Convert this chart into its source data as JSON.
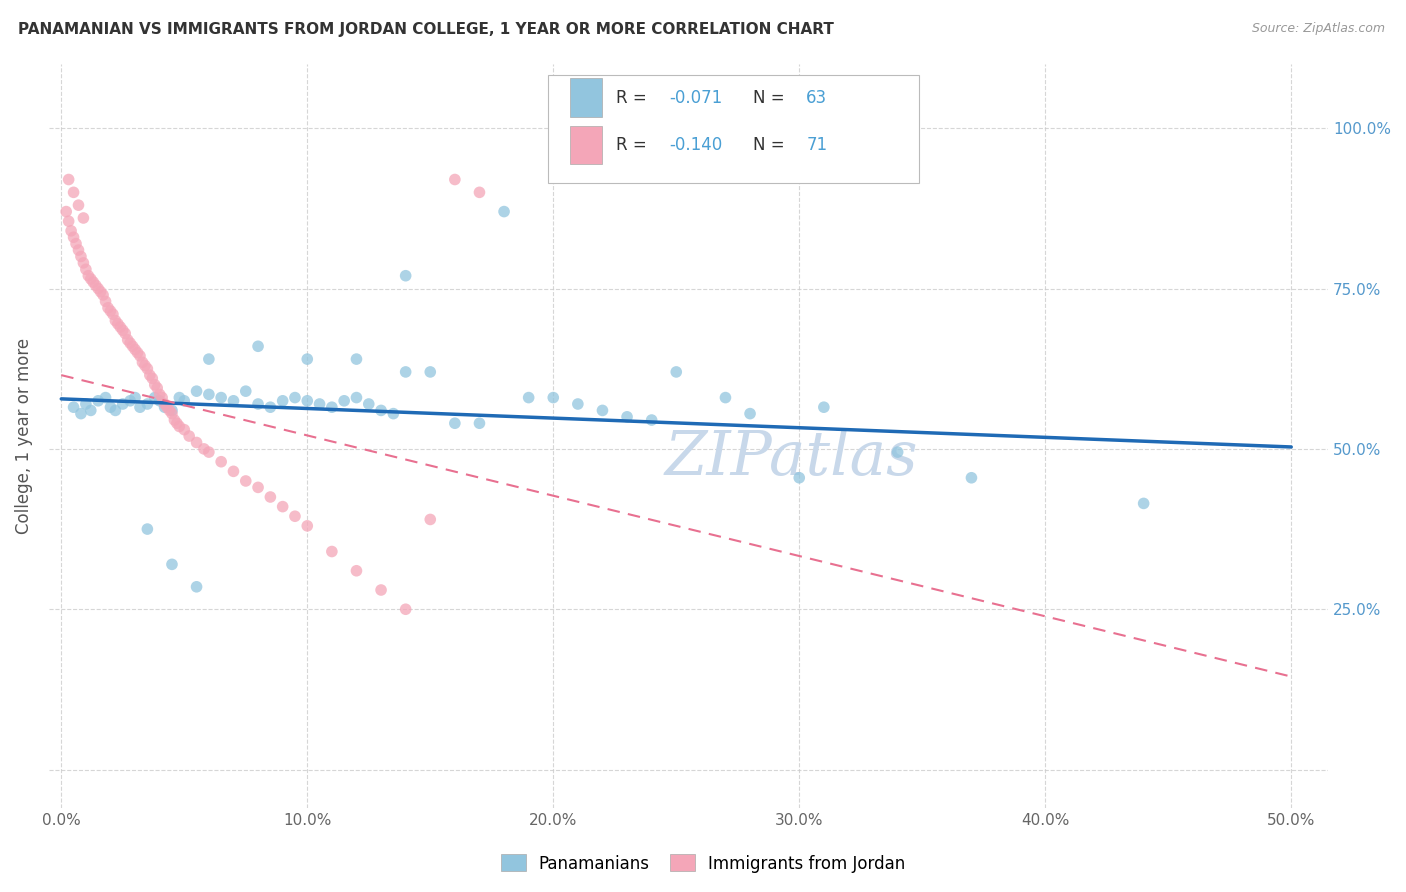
{
  "title": "PANAMANIAN VS IMMIGRANTS FROM JORDAN COLLEGE, 1 YEAR OR MORE CORRELATION CHART",
  "source": "Source: ZipAtlas.com",
  "ylabel": "College, 1 year or more",
  "color_blue": "#92c5de",
  "color_pink": "#f4a6b8",
  "color_line_blue": "#1f6ab5",
  "color_line_pink": "#e87090",
  "watermark": "ZIPatlas",
  "watermark_color": "#c8d8ea",
  "blue_x": [
    0.005,
    0.008,
    0.01,
    0.012,
    0.015,
    0.018,
    0.02,
    0.022,
    0.025,
    0.028,
    0.03,
    0.032,
    0.035,
    0.038,
    0.04,
    0.042,
    0.045,
    0.048,
    0.05,
    0.055,
    0.06,
    0.065,
    0.07,
    0.075,
    0.08,
    0.085,
    0.09,
    0.095,
    0.1,
    0.105,
    0.11,
    0.115,
    0.12,
    0.125,
    0.13,
    0.135,
    0.14,
    0.15,
    0.16,
    0.17,
    0.18,
    0.19,
    0.2,
    0.21,
    0.22,
    0.23,
    0.24,
    0.25,
    0.27,
    0.28,
    0.3,
    0.31,
    0.34,
    0.37,
    0.44,
    0.06,
    0.08,
    0.1,
    0.12,
    0.14,
    0.035,
    0.045,
    0.055
  ],
  "blue_y": [
    0.565,
    0.555,
    0.57,
    0.56,
    0.575,
    0.58,
    0.565,
    0.56,
    0.57,
    0.575,
    0.58,
    0.565,
    0.57,
    0.58,
    0.575,
    0.565,
    0.56,
    0.58,
    0.575,
    0.59,
    0.585,
    0.58,
    0.575,
    0.59,
    0.57,
    0.565,
    0.575,
    0.58,
    0.575,
    0.57,
    0.565,
    0.575,
    0.58,
    0.57,
    0.56,
    0.555,
    0.77,
    0.62,
    0.54,
    0.54,
    0.87,
    0.58,
    0.58,
    0.57,
    0.56,
    0.55,
    0.545,
    0.62,
    0.58,
    0.555,
    0.455,
    0.565,
    0.495,
    0.455,
    0.415,
    0.64,
    0.66,
    0.64,
    0.64,
    0.62,
    0.375,
    0.32,
    0.285
  ],
  "pink_x": [
    0.002,
    0.003,
    0.004,
    0.005,
    0.006,
    0.007,
    0.008,
    0.009,
    0.01,
    0.011,
    0.012,
    0.013,
    0.014,
    0.015,
    0.016,
    0.017,
    0.018,
    0.019,
    0.02,
    0.021,
    0.022,
    0.023,
    0.024,
    0.025,
    0.026,
    0.027,
    0.028,
    0.029,
    0.03,
    0.031,
    0.032,
    0.033,
    0.034,
    0.035,
    0.036,
    0.037,
    0.038,
    0.039,
    0.04,
    0.041,
    0.042,
    0.043,
    0.044,
    0.045,
    0.046,
    0.047,
    0.048,
    0.05,
    0.052,
    0.055,
    0.058,
    0.06,
    0.065,
    0.07,
    0.075,
    0.08,
    0.085,
    0.09,
    0.095,
    0.1,
    0.11,
    0.12,
    0.13,
    0.14,
    0.15,
    0.16,
    0.17,
    0.003,
    0.005,
    0.007,
    0.009
  ],
  "pink_y": [
    0.87,
    0.855,
    0.84,
    0.83,
    0.82,
    0.81,
    0.8,
    0.79,
    0.78,
    0.77,
    0.765,
    0.76,
    0.755,
    0.75,
    0.745,
    0.74,
    0.73,
    0.72,
    0.715,
    0.71,
    0.7,
    0.695,
    0.69,
    0.685,
    0.68,
    0.67,
    0.665,
    0.66,
    0.655,
    0.65,
    0.645,
    0.635,
    0.63,
    0.625,
    0.615,
    0.61,
    0.6,
    0.595,
    0.585,
    0.58,
    0.57,
    0.565,
    0.56,
    0.555,
    0.545,
    0.54,
    0.535,
    0.53,
    0.52,
    0.51,
    0.5,
    0.495,
    0.48,
    0.465,
    0.45,
    0.44,
    0.425,
    0.41,
    0.395,
    0.38,
    0.34,
    0.31,
    0.28,
    0.25,
    0.39,
    0.92,
    0.9,
    0.92,
    0.9,
    0.88,
    0.86
  ],
  "blue_trend_x": [
    0.0,
    0.5
  ],
  "blue_trend_y": [
    0.578,
    0.503
  ],
  "pink_trend_x": [
    0.0,
    0.5
  ],
  "pink_trend_y": [
    0.615,
    0.145
  ],
  "x_ticks": [
    0.0,
    0.1,
    0.2,
    0.3,
    0.4,
    0.5
  ],
  "x_tick_labels": [
    "0.0%",
    "10.0%",
    "20.0%",
    "30.0%",
    "40.0%",
    "50.0%"
  ],
  "y_ticks": [
    0.0,
    0.25,
    0.5,
    0.75,
    1.0
  ],
  "y_right_labels": [
    "",
    "25.0%",
    "50.0%",
    "75.0%",
    "100.0%"
  ],
  "xlim": [
    -0.005,
    0.515
  ],
  "ylim": [
    -0.06,
    1.1
  ],
  "legend_text_color": "#4a9fd4",
  "tick_label_color": "#5599cc"
}
